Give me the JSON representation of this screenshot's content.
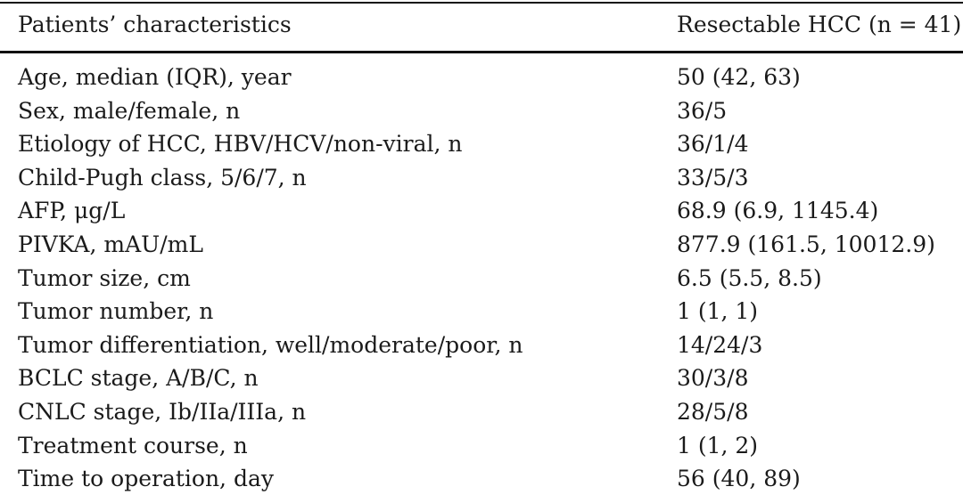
{
  "table": {
    "header": {
      "col1": "Patients’ characteristics",
      "col2": "Resectable HCC (n = 41)"
    },
    "rows": [
      {
        "label": "Age, median (IQR), year",
        "value": "50 (42, 63)"
      },
      {
        "label": "Sex, male/female, n",
        "value": "36/5"
      },
      {
        "label": "Etiology of HCC, HBV/HCV/non-viral, n",
        "value": "36/1/4"
      },
      {
        "label": "Child-Pugh class, 5/6/7, n",
        "value": "33/5/3"
      },
      {
        "label": "AFP, μg/L",
        "value": "68.9 (6.9, 1145.4)"
      },
      {
        "label": "PIVKA, mAU/mL",
        "value": "877.9 (161.5, 10012.9)"
      },
      {
        "label": "Tumor size, cm",
        "value": "6.5 (5.5, 8.5)"
      },
      {
        "label": "Tumor number, n",
        "value": "1 (1, 1)"
      },
      {
        "label": "Tumor differentiation, well/moderate/poor, n",
        "value": "14/24/3"
      },
      {
        "label": "BCLC stage, A/B/C, n",
        "value": "30/3/8"
      },
      {
        "label": "CNLC stage, Ib/IIa/IIIa, n",
        "value": "28/5/8"
      },
      {
        "label": "Treatment course, n",
        "value": "1 (1, 2)"
      },
      {
        "label": "Time to operation, day",
        "value": "56 (40, 89)"
      }
    ]
  }
}
